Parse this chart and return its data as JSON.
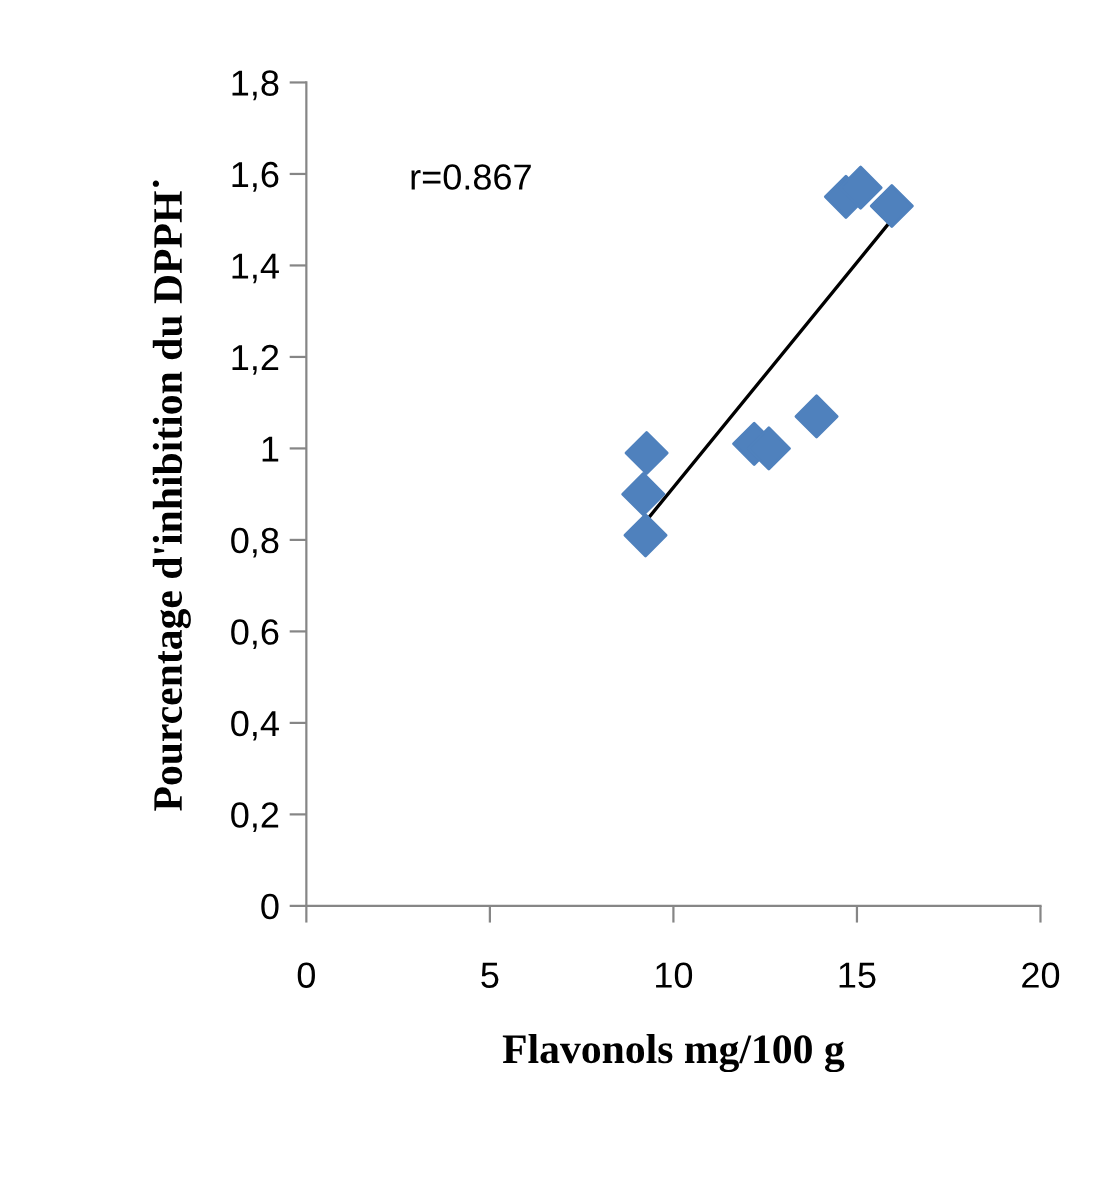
{
  "chart_data": {
    "type": "scatter",
    "xlabel": "Flavonols mg/100 g",
    "ylabel": "Pourcentage d'inhibition du DPPH˙",
    "series": [
      {
        "color": "#4f81bd",
        "marker": "diamond",
        "x": [
          9.27,
          9.18,
          9.24,
          12.2,
          12.6,
          13.9,
          14.7,
          15.1,
          15.95
        ],
        "values": [
          0.99,
          0.9,
          0.81,
          1.01,
          1.0,
          1.07,
          1.55,
          1.57,
          1.53
        ]
      },
      {
        "type": "line",
        "marker": "none",
        "color": "#000000",
        "x": [
          9.24,
          15.95
        ],
        "values": [
          0.84,
          1.5
        ]
      }
    ],
    "annotations": [
      "r=0.867"
    ],
    "xlim": [
      0,
      20
    ],
    "xticks": [
      0,
      5,
      10,
      15,
      20
    ],
    "ylim": [
      0,
      1.8
    ],
    "yticks": [
      0,
      {
        "value": 0.2,
        "label": "0,2"
      },
      {
        "value": 0.4,
        "label": "0,4"
      },
      {
        "value": 0.6,
        "label": "0,6"
      },
      {
        "value": 0.8,
        "label": "0,8"
      },
      1,
      {
        "value": 1.2,
        "label": "1,2"
      },
      {
        "value": 1.4,
        "label": "1,4"
      },
      {
        "value": 1.6,
        "label": "1,6"
      },
      {
        "value": 1.8,
        "label": "1,8"
      }
    ],
    "grid": false
  }
}
